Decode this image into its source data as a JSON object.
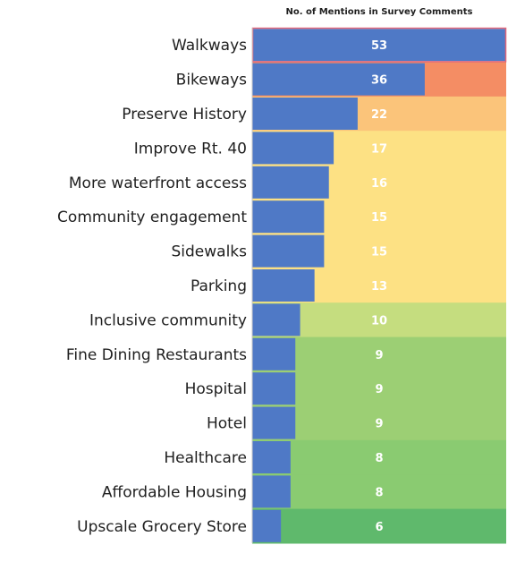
{
  "chart_data": {
    "type": "bar",
    "orientation": "horizontal",
    "title": "No. of Mentions in Survey Comments",
    "categories": [
      "Walkways",
      "Bikeways",
      "Preserve History",
      "Improve Rt. 40",
      "More waterfront access",
      "Community engagement",
      "Sidewalks",
      "Parking",
      "Inclusive community",
      "Fine Dining Restaurants",
      "Hospital",
      "Hotel",
      "Healthcare",
      "Affordable Housing",
      "Upscale Grocery Store"
    ],
    "values": [
      53,
      36,
      22,
      17,
      16,
      15,
      15,
      13,
      10,
      9,
      9,
      9,
      8,
      8,
      6
    ],
    "bar_color": "#4f79c6",
    "background_colors": [
      "#ffffff",
      "#f48d64",
      "#fbc47a",
      "#fde184",
      "#fde184",
      "#fde184",
      "#fde184",
      "#fde184",
      "#c5dd7f",
      "#9ccf74",
      "#9ccf74",
      "#9ccf74",
      "#8acb71",
      "#8acb71",
      "#5fb96c"
    ],
    "highlight_border_color": "#e0677a",
    "grid": false,
    "legend": "none"
  }
}
